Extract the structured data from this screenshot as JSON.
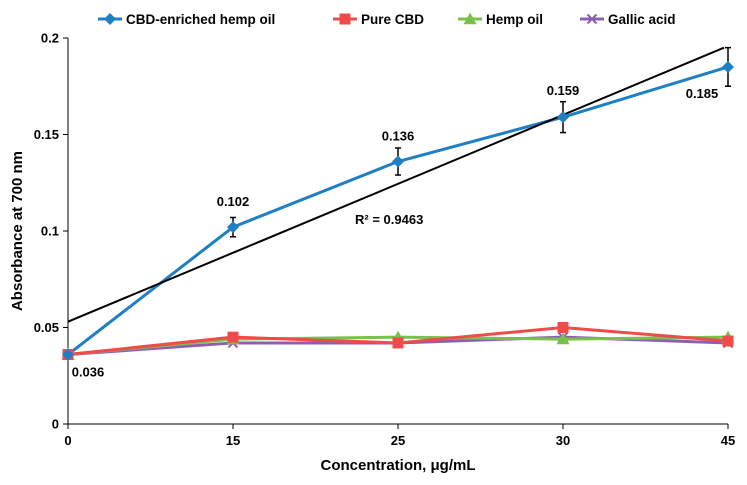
{
  "chart_data": {
    "type": "line",
    "xlabel": "Concentration, μg/mL",
    "ylabel": "Absorbance at 700 nm",
    "categories": [
      "0",
      "15",
      "25",
      "30",
      "45"
    ],
    "ylim": [
      0,
      0.2
    ],
    "yticks": [
      0,
      0.05,
      0.1,
      0.15,
      0.2
    ],
    "ytick_labels": [
      "0",
      "0.05",
      "0.1",
      "0.15",
      "0.2"
    ],
    "grid": false,
    "legend_position": "top",
    "series": [
      {
        "name": "CBD-enriched hemp oil",
        "color": "#1f7fc4",
        "marker": "diamond",
        "values": [
          0.036,
          0.102,
          0.136,
          0.159,
          0.185
        ],
        "errors": [
          0.0,
          0.005,
          0.007,
          0.008,
          0.01
        ],
        "data_labels": [
          "0.036",
          "0.102",
          "0.136",
          "0.159",
          "0.185"
        ]
      },
      {
        "name": "Pure CBD",
        "color": "#f04a4a",
        "marker": "square",
        "values": [
          0.036,
          0.045,
          0.042,
          0.05,
          0.043
        ]
      },
      {
        "name": "Hemp oil",
        "color": "#78c14b",
        "marker": "triangle",
        "values": [
          0.036,
          0.044,
          0.045,
          0.044,
          0.045
        ]
      },
      {
        "name": "Gallic acid",
        "color": "#8e5fb0",
        "marker": "x",
        "values": [
          0.036,
          0.042,
          0.042,
          0.045,
          0.042
        ]
      }
    ],
    "trendline": {
      "series": "CBD-enriched hemp oil",
      "color": "#000000",
      "start": 0.053,
      "end": 0.195,
      "label": "R² = 0.9463"
    }
  }
}
